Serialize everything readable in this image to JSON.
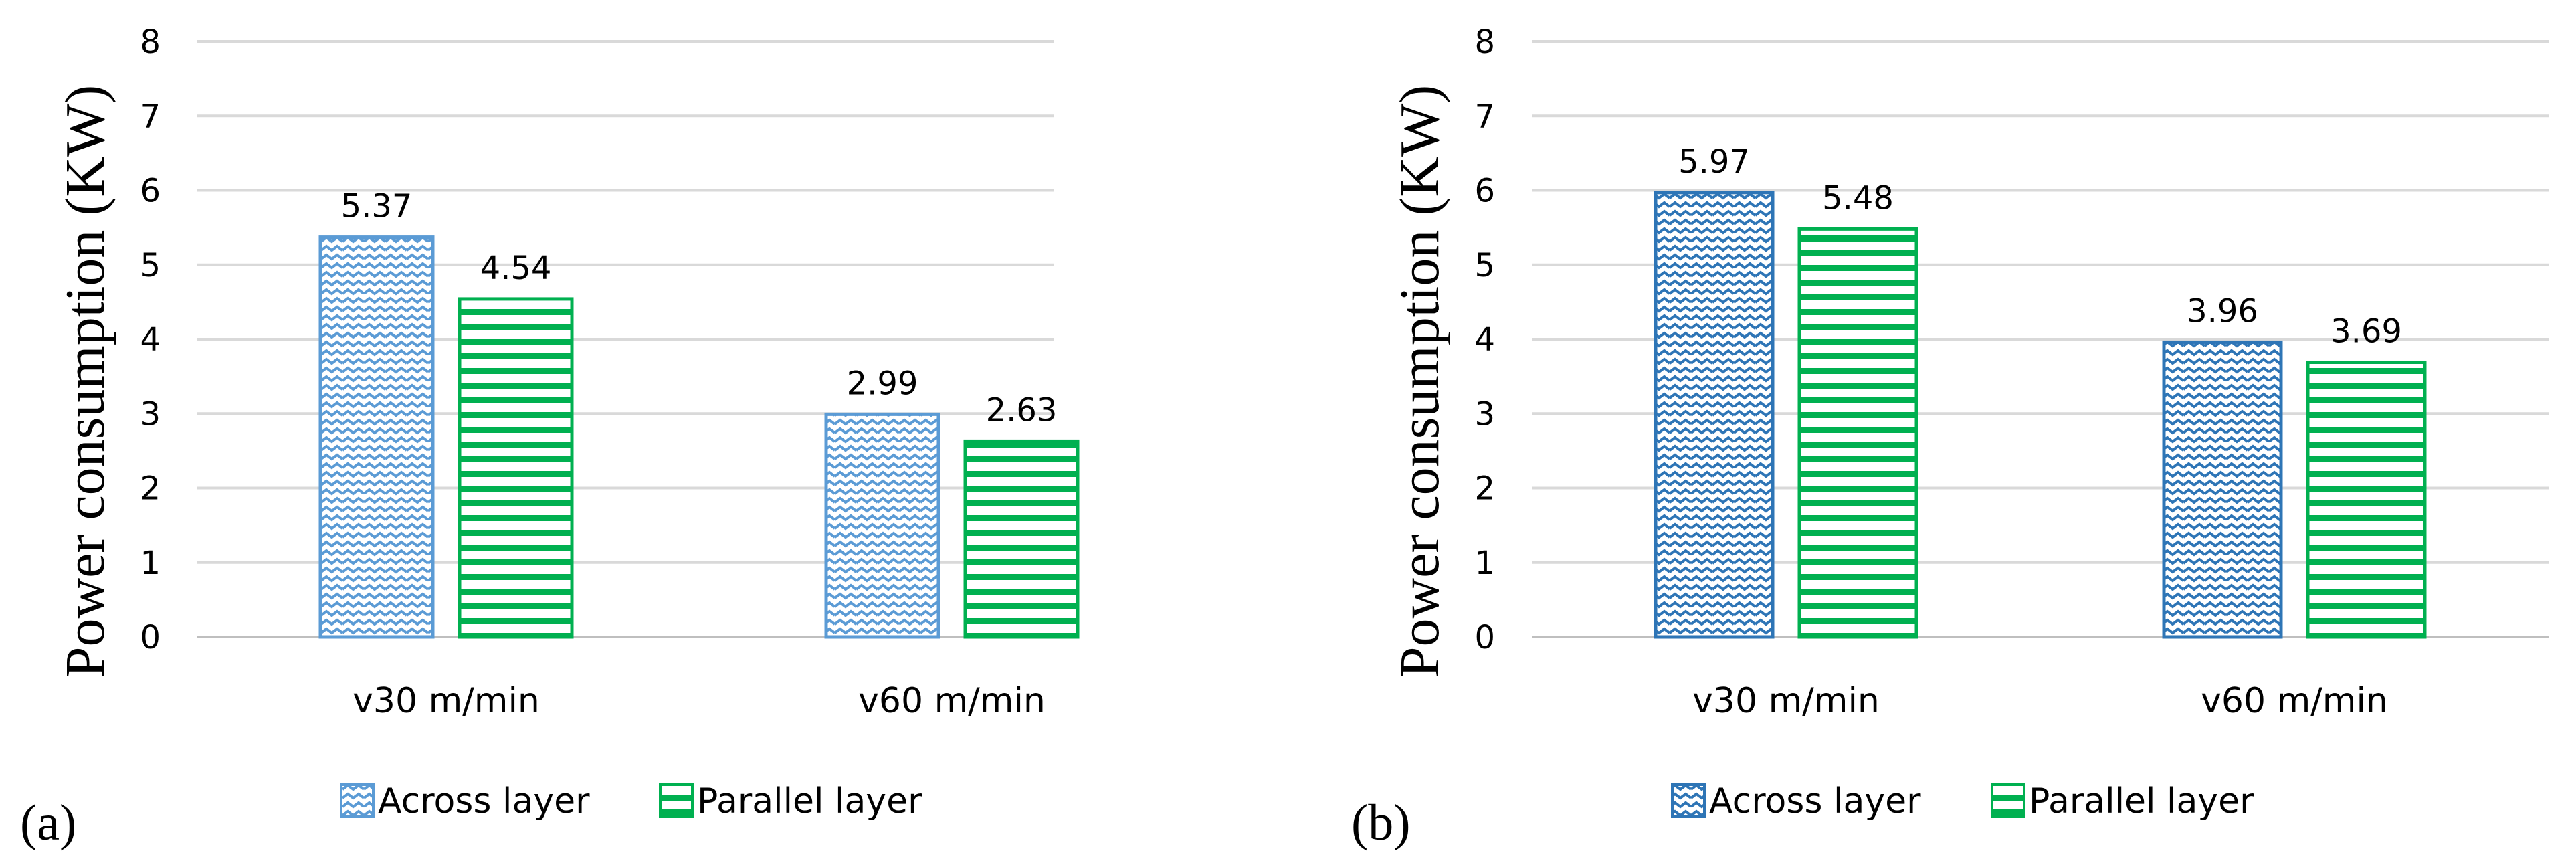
{
  "chart_data": [
    {
      "type": "bar",
      "panel_label": "(a)",
      "title": "",
      "xlabel": "",
      "ylabel": "Power consumption (KW)",
      "ylim": [
        0,
        8
      ],
      "yticks": [
        0,
        1,
        2,
        3,
        4,
        5,
        6,
        7,
        8
      ],
      "grid": true,
      "legend_position": "bottom",
      "categories": [
        "v30 m/min",
        "v60 m/min"
      ],
      "series": [
        {
          "name": "Across layer",
          "values": [
            5.37,
            2.99
          ],
          "labels": [
            "5.37",
            "2.99"
          ],
          "color": "#5b9bd5",
          "pattern": "wave"
        },
        {
          "name": "Parallel layer",
          "values": [
            4.54,
            2.63
          ],
          "labels": [
            "4.54",
            "2.63"
          ],
          "color": "#00b050",
          "pattern": "horizontal-lines"
        }
      ]
    },
    {
      "type": "bar",
      "panel_label": "(b)",
      "title": "",
      "xlabel": "",
      "ylabel": "Power consumption (KW)",
      "ylim": [
        0,
        8
      ],
      "yticks": [
        0,
        1,
        2,
        3,
        4,
        5,
        6,
        7,
        8
      ],
      "grid": true,
      "legend_position": "bottom",
      "categories": [
        "v30 m/min",
        "v60 m/min"
      ],
      "series": [
        {
          "name": "Across layer",
          "values": [
            5.97,
            3.96
          ],
          "labels": [
            "5.97",
            "3.96"
          ],
          "color": "#2e75b6",
          "pattern": "wave"
        },
        {
          "name": "Parallel layer",
          "values": [
            5.48,
            3.69
          ],
          "labels": [
            "5.48",
            "3.69"
          ],
          "color": "#00b050",
          "pattern": "horizontal-lines"
        }
      ]
    }
  ]
}
